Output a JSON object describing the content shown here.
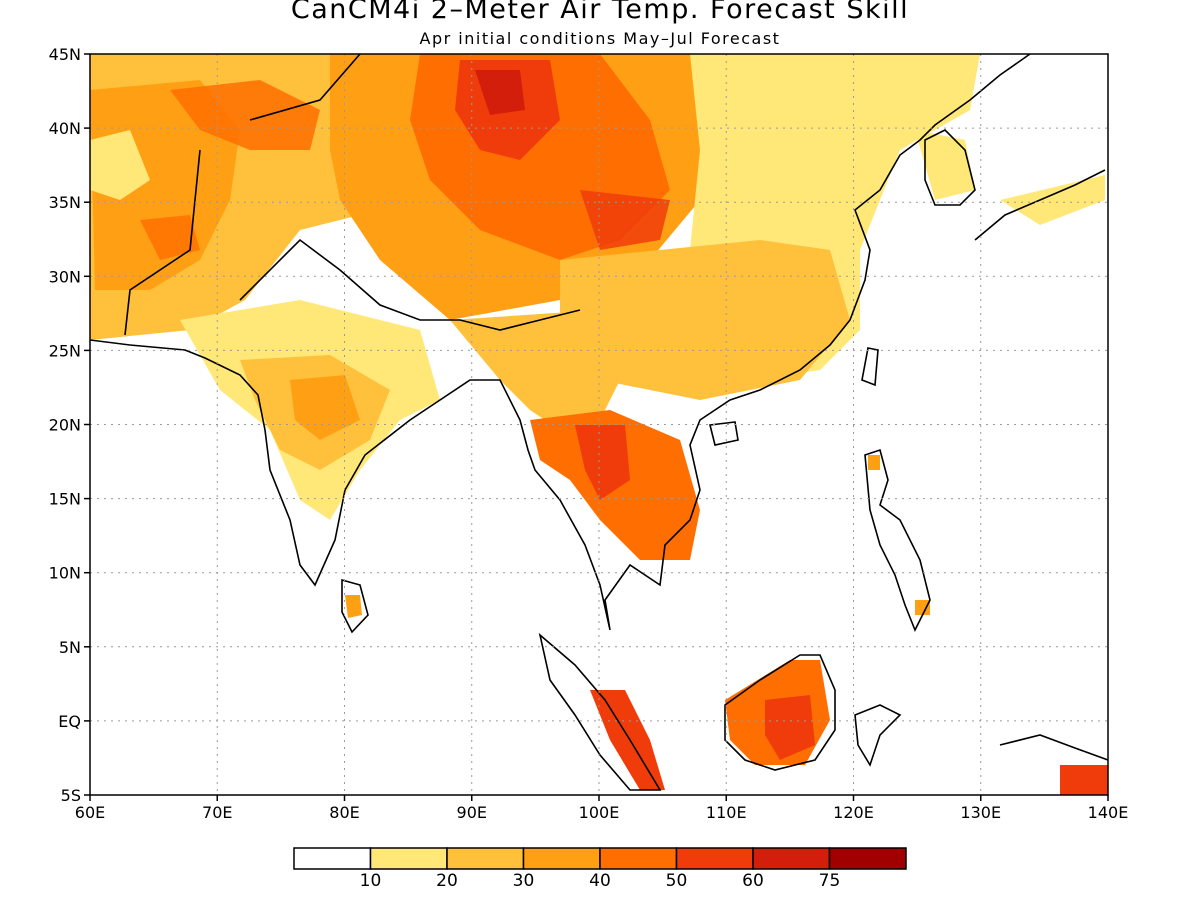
{
  "map": {
    "title": "CanCM4i 2–Meter Air Temp. Forecast Skill",
    "subtitle": "Apr initial conditions   May–Jul Forecast",
    "lon_range": [
      60,
      140
    ],
    "lat_range": [
      -5,
      45
    ],
    "lon_ticks": [
      "60E",
      "70E",
      "80E",
      "90E",
      "100E",
      "110E",
      "120E",
      "130E",
      "140E"
    ],
    "lat_ticks": [
      "5S",
      "EQ",
      "5N",
      "10N",
      "15N",
      "20N",
      "25N",
      "30N",
      "35N",
      "40N",
      "45N"
    ],
    "gridlines": true,
    "colorbar": {
      "labels": [
        "10",
        "20",
        "30",
        "40",
        "50",
        "60",
        "75"
      ],
      "colors": [
        "#ffffff",
        "#ffe878",
        "#ffc03c",
        "#ffa014",
        "#ff6e00",
        "#f03c0a",
        "#d21e0a",
        "#a00000"
      ]
    }
  }
}
